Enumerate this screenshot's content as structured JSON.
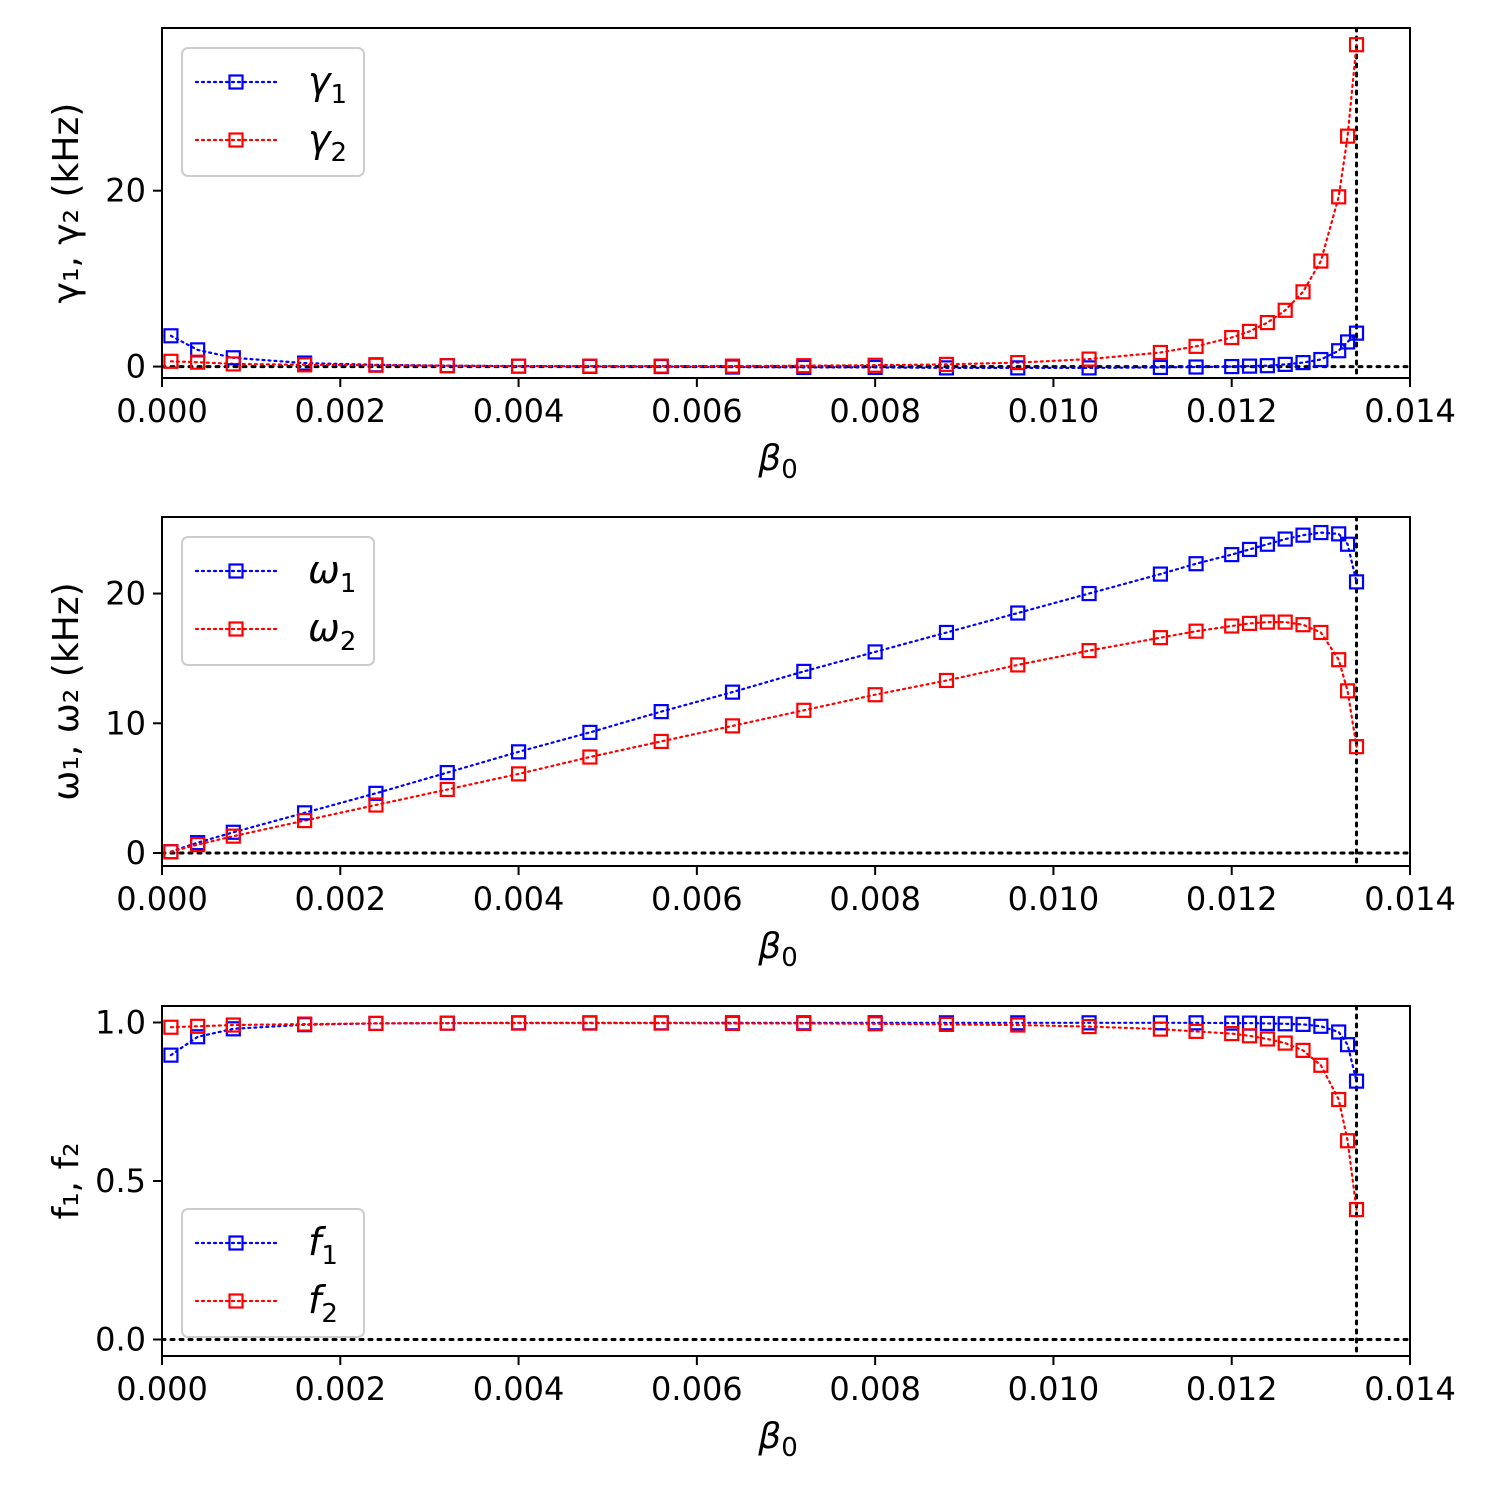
{
  "chart_data": [
    {
      "type": "line",
      "id": "gamma",
      "xlabel": "β",
      "xlabel_sub": "0",
      "ylabel": "γ₁, γ₂ (kHz)",
      "xlim": [
        0,
        0.014
      ],
      "ylim": [
        -1.3,
        38.5
      ],
      "xticks": [
        0.0,
        0.002,
        0.004,
        0.006,
        0.008,
        0.01,
        0.012,
        0.014
      ],
      "xtick_labels": [
        "0.000",
        "0.002",
        "0.004",
        "0.006",
        "0.008",
        "0.010",
        "0.012",
        "0.014"
      ],
      "yticks": [
        0,
        20
      ],
      "ytick_labels": [
        "0",
        "20"
      ],
      "legend_position": "top-left",
      "hline": 0,
      "vline": 0.0134,
      "series": [
        {
          "name": "γ",
          "sub": "1",
          "color": "#0000ff",
          "x": [
            0.0001,
            0.0004,
            0.0008,
            0.0016,
            0.0024,
            0.0032,
            0.004,
            0.0048,
            0.0056,
            0.0064,
            0.0072,
            0.008,
            0.0088,
            0.0096,
            0.0104,
            0.0112,
            0.0116,
            0.012,
            0.0122,
            0.0124,
            0.0126,
            0.0128,
            0.013,
            0.0132,
            0.0133,
            0.0134
          ],
          "y": [
            3.5,
            1.9,
            1.0,
            0.4,
            0.2,
            0.1,
            0.05,
            0.02,
            0.0,
            -0.05,
            -0.1,
            -0.1,
            -0.15,
            -0.15,
            -0.15,
            -0.1,
            -0.05,
            0.0,
            0.05,
            0.1,
            0.25,
            0.45,
            0.8,
            1.8,
            2.8,
            3.8
          ]
        },
        {
          "name": "γ",
          "sub": "2",
          "color": "#ff0000",
          "x": [
            0.0001,
            0.0004,
            0.0008,
            0.0016,
            0.0024,
            0.0032,
            0.004,
            0.0048,
            0.0056,
            0.0064,
            0.0072,
            0.008,
            0.0088,
            0.0096,
            0.0104,
            0.0112,
            0.0116,
            0.012,
            0.0122,
            0.0124,
            0.0126,
            0.0128,
            0.013,
            0.0132,
            0.0133,
            0.0134
          ],
          "y": [
            0.6,
            0.5,
            0.3,
            0.2,
            0.15,
            0.1,
            0.05,
            0.05,
            0.05,
            0.05,
            0.1,
            0.15,
            0.25,
            0.45,
            0.85,
            1.6,
            2.3,
            3.3,
            4.0,
            5.0,
            6.4,
            8.5,
            12.0,
            19.3,
            26.2,
            36.6
          ]
        }
      ]
    },
    {
      "type": "line",
      "id": "omega",
      "xlabel": "β",
      "xlabel_sub": "0",
      "ylabel": "ω₁, ω₂ (kHz)",
      "xlim": [
        0,
        0.014
      ],
      "ylim": [
        -1.0,
        25.9
      ],
      "xticks": [
        0.0,
        0.002,
        0.004,
        0.006,
        0.008,
        0.01,
        0.012,
        0.014
      ],
      "xtick_labels": [
        "0.000",
        "0.002",
        "0.004",
        "0.006",
        "0.008",
        "0.010",
        "0.012",
        "0.014"
      ],
      "yticks": [
        0,
        10,
        20
      ],
      "ytick_labels": [
        "0",
        "10",
        "20"
      ],
      "legend_position": "top-left",
      "hline": 0,
      "vline": 0.0134,
      "series": [
        {
          "name": "ω",
          "sub": "1",
          "color": "#0000ff",
          "x": [
            0.0001,
            0.0004,
            0.0008,
            0.0016,
            0.0024,
            0.0032,
            0.004,
            0.0048,
            0.0056,
            0.0064,
            0.0072,
            0.008,
            0.0088,
            0.0096,
            0.0104,
            0.0112,
            0.0116,
            0.012,
            0.0122,
            0.0124,
            0.0126,
            0.0128,
            0.013,
            0.0132,
            0.0133,
            0.0134
          ],
          "y": [
            0.1,
            0.8,
            1.6,
            3.1,
            4.6,
            6.2,
            7.8,
            9.3,
            10.9,
            12.4,
            14.0,
            15.5,
            17.0,
            18.5,
            20.0,
            21.5,
            22.3,
            23.0,
            23.4,
            23.8,
            24.2,
            24.5,
            24.7,
            24.6,
            23.8,
            20.9
          ]
        },
        {
          "name": "ω",
          "sub": "2",
          "color": "#ff0000",
          "x": [
            0.0001,
            0.0004,
            0.0008,
            0.0016,
            0.0024,
            0.0032,
            0.004,
            0.0048,
            0.0056,
            0.0064,
            0.0072,
            0.008,
            0.0088,
            0.0096,
            0.0104,
            0.0112,
            0.0116,
            0.012,
            0.0122,
            0.0124,
            0.0126,
            0.0128,
            0.013,
            0.0132,
            0.0133,
            0.0134
          ],
          "y": [
            0.1,
            0.65,
            1.3,
            2.5,
            3.7,
            4.9,
            6.1,
            7.4,
            8.6,
            9.8,
            11.0,
            12.2,
            13.3,
            14.5,
            15.6,
            16.6,
            17.1,
            17.5,
            17.7,
            17.8,
            17.8,
            17.6,
            17.0,
            14.9,
            12.5,
            8.2
          ]
        }
      ]
    },
    {
      "type": "line",
      "id": "f",
      "xlabel": "β",
      "xlabel_sub": "0",
      "ylabel": "f₁, f₂",
      "xlim": [
        0,
        0.014
      ],
      "ylim": [
        -0.052,
        1.052
      ],
      "xticks": [
        0.0,
        0.002,
        0.004,
        0.006,
        0.008,
        0.01,
        0.012,
        0.014
      ],
      "xtick_labels": [
        "0.000",
        "0.002",
        "0.004",
        "0.006",
        "0.008",
        "0.010",
        "0.012",
        "0.014"
      ],
      "yticks": [
        0.0,
        0.5,
        1.0
      ],
      "ytick_labels": [
        "0.0",
        "0.5",
        "1.0"
      ],
      "legend_position": "bottom-left",
      "hline": 0,
      "vline": 0.0134,
      "series": [
        {
          "name": "f",
          "sub": "1",
          "color": "#0000ff",
          "x": [
            0.0001,
            0.0004,
            0.0008,
            0.0016,
            0.0024,
            0.0032,
            0.004,
            0.0048,
            0.0056,
            0.0064,
            0.0072,
            0.008,
            0.0088,
            0.0096,
            0.0104,
            0.0112,
            0.0116,
            0.012,
            0.0122,
            0.0124,
            0.0126,
            0.0128,
            0.013,
            0.0132,
            0.0133,
            0.0134
          ],
          "y": [
            0.897,
            0.955,
            0.98,
            0.993,
            0.997,
            0.998,
            0.999,
            0.999,
            0.999,
            0.999,
            0.999,
            0.999,
            0.999,
            0.999,
            0.999,
            0.999,
            0.999,
            0.998,
            0.998,
            0.997,
            0.996,
            0.994,
            0.988,
            0.97,
            0.93,
            0.815
          ]
        },
        {
          "name": "f",
          "sub": "2",
          "color": "#ff0000",
          "x": [
            0.0001,
            0.0004,
            0.0008,
            0.0016,
            0.0024,
            0.0032,
            0.004,
            0.0048,
            0.0056,
            0.0064,
            0.0072,
            0.008,
            0.0088,
            0.0096,
            0.0104,
            0.0112,
            0.0116,
            0.012,
            0.0122,
            0.0124,
            0.0126,
            0.0128,
            0.013,
            0.0132,
            0.0133,
            0.0134
          ],
          "y": [
            0.985,
            0.988,
            0.992,
            0.995,
            0.997,
            0.998,
            0.998,
            0.998,
            0.998,
            0.997,
            0.997,
            0.996,
            0.994,
            0.992,
            0.987,
            0.979,
            0.972,
            0.965,
            0.958,
            0.948,
            0.935,
            0.912,
            0.865,
            0.757,
            0.627,
            0.41
          ]
        }
      ]
    }
  ]
}
